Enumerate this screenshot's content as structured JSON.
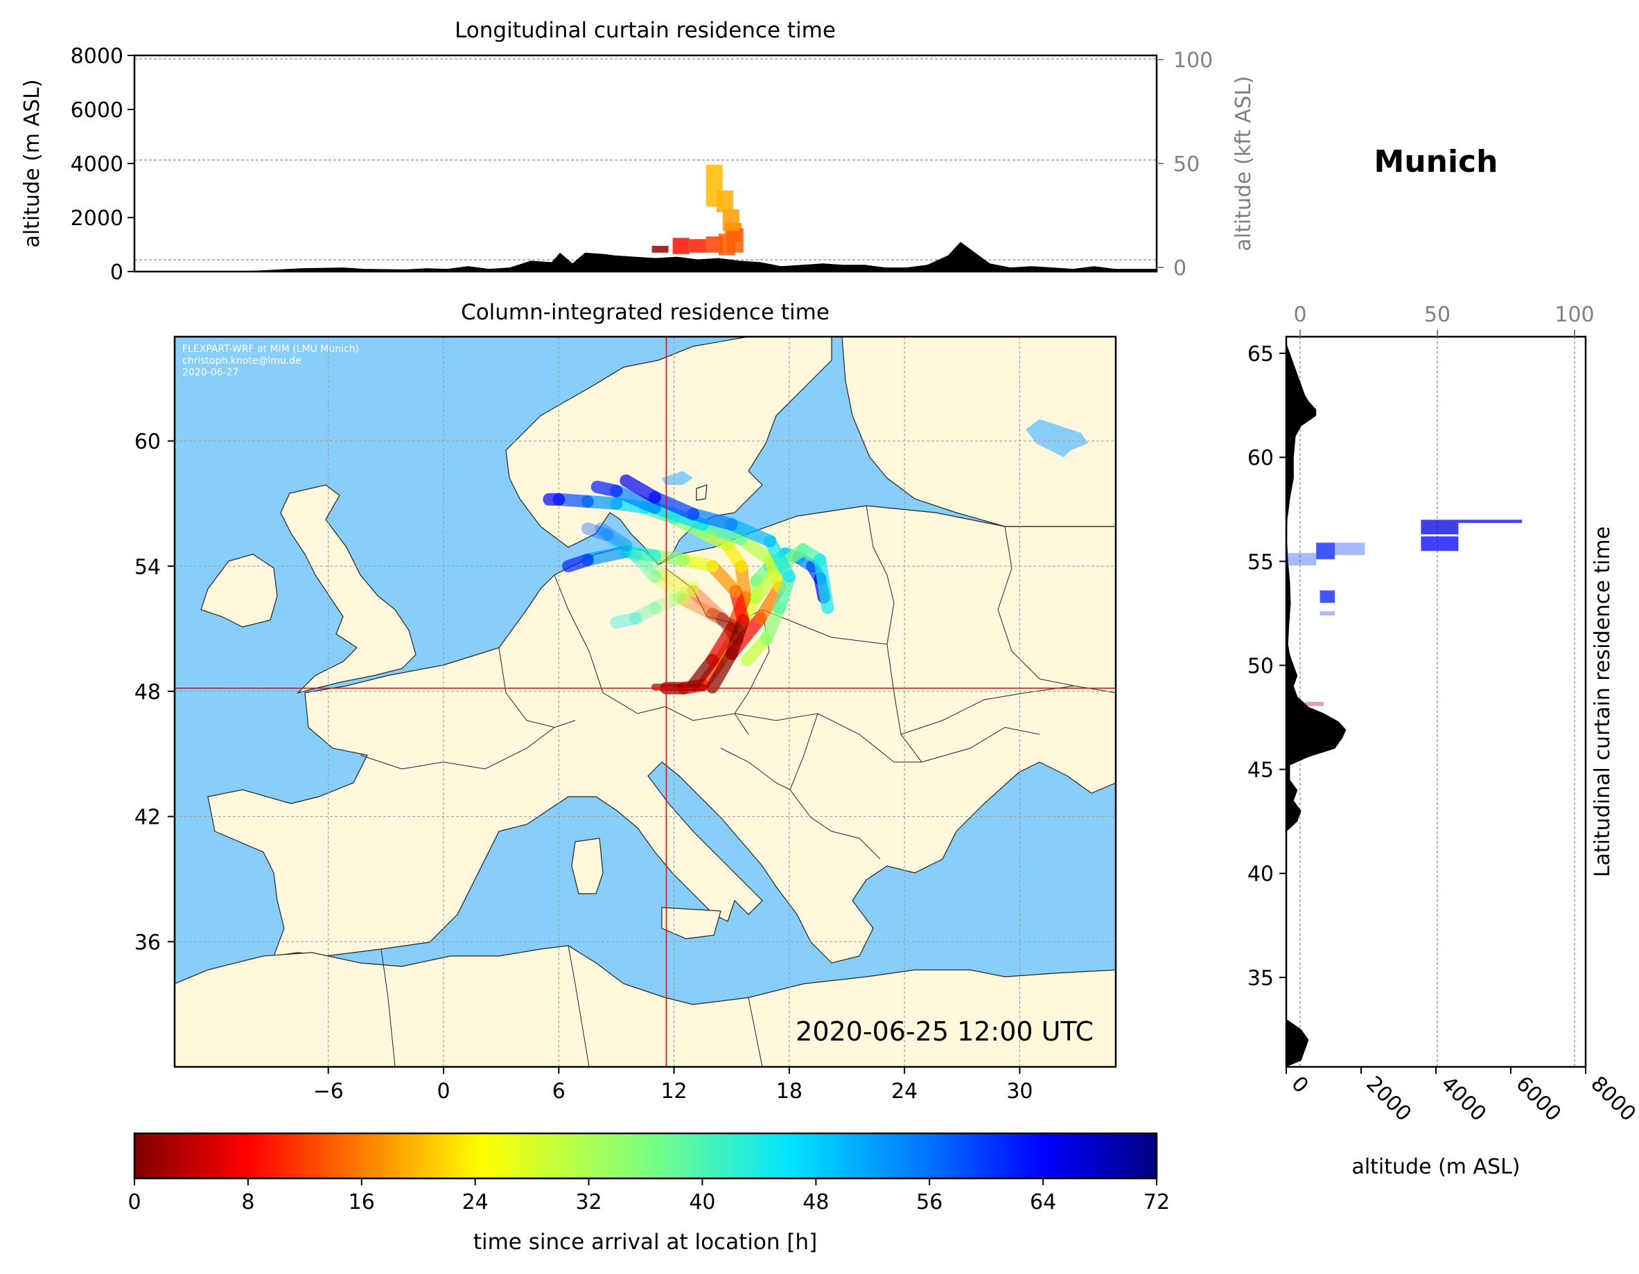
{
  "location": "Munich",
  "timestamp": "2020-06-25 12:00 UTC",
  "credit": [
    "FLEXPART-WRF at MIM (LMU Munich)",
    "christoph.knote@lmu.de",
    "2020-06-27"
  ],
  "colors": {
    "ocean": "#87CEFA",
    "land": "#FFF8DC",
    "marker": "#ff0000",
    "terrain": "#000000",
    "secondary_axis": "#808080"
  },
  "chart_data": [
    {
      "id": "longitudinal",
      "type": "area",
      "title": "Longitudinal curtain residence time",
      "ylabel": "altitude (m ASL)",
      "ylabel_right": "altitude (kft ASL)",
      "ylim": [
        0,
        8000
      ],
      "yticks": [
        "0",
        "2000",
        "4000",
        "6000",
        "8000"
      ],
      "y2ticks": [
        "0",
        "50",
        "100"
      ],
      "y2lim": [
        -2,
        102
      ],
      "xlim": [
        -14,
        35
      ],
      "terrain": {
        "x": [
          -14,
          -9,
          -6,
          -4,
          -3,
          -1,
          0,
          1,
          2,
          3,
          4,
          5,
          6,
          6.4,
          7,
          7.6,
          8.5,
          9,
          10,
          11,
          12,
          13,
          14,
          15,
          16,
          17,
          18,
          19,
          20,
          21,
          22,
          23,
          24,
          25,
          25.6,
          26.3,
          27,
          28,
          29,
          30,
          31,
          32,
          33,
          35
        ],
        "y": [
          0,
          0,
          120,
          150,
          100,
          80,
          120,
          100,
          200,
          100,
          150,
          400,
          350,
          700,
          300,
          700,
          650,
          600,
          550,
          500,
          550,
          450,
          500,
          400,
          350,
          200,
          250,
          300,
          250,
          250,
          150,
          150,
          250,
          600,
          1100,
          700,
          300,
          150,
          200,
          150,
          100,
          200,
          100,
          100
        ]
      },
      "residence_bars": [
        {
          "lon": 11.2,
          "alt_min": 700,
          "alt_max": 950,
          "hours": 2
        },
        {
          "lon": 12.2,
          "alt_min": 650,
          "alt_max": 1250,
          "hours": 9
        },
        {
          "lon": 13.0,
          "alt_min": 700,
          "alt_max": 1200,
          "hours": 10
        },
        {
          "lon": 13.8,
          "alt_min": 700,
          "alt_max": 1300,
          "hours": 12
        },
        {
          "lon": 14.4,
          "alt_min": 600,
          "alt_max": 1400,
          "hours": 14
        },
        {
          "lon": 14.7,
          "alt_min": 1100,
          "alt_max": 1800,
          "hours": 16
        },
        {
          "lon": 14.8,
          "alt_min": 700,
          "alt_max": 1600,
          "hours": 14
        },
        {
          "lon": 14.6,
          "alt_min": 1500,
          "alt_max": 2300,
          "hours": 18
        },
        {
          "lon": 14.3,
          "alt_min": 2200,
          "alt_max": 3000,
          "hours": 19
        },
        {
          "lon": 13.8,
          "alt_min": 2400,
          "alt_max": 3950,
          "hours": 20
        }
      ]
    },
    {
      "id": "map",
      "type": "scatter",
      "title": "Column-integrated residence time",
      "xlim": [
        -14,
        35
      ],
      "ylim": [
        30,
        65
      ],
      "xticks": [
        "−6",
        "0",
        "6",
        "12",
        "18",
        "24",
        "30"
      ],
      "yticks": [
        "36",
        "42",
        "48",
        "54",
        "60"
      ],
      "release_point": {
        "lon": 11.6,
        "lat": 48.15
      },
      "trajectories": [
        {
          "lon": [
            11.6,
            12.5,
            13.5,
            14.3,
            15.0,
            15.7,
            16.2,
            16.3,
            17.0,
            17.8,
            18.5,
            19.2,
            19.6,
            19.8
          ],
          "lat": [
            48.15,
            48.15,
            48.3,
            49.3,
            50.4,
            51.5,
            52.5,
            53.3,
            54.0,
            54.6,
            54.4,
            54.0,
            53.4,
            52.5
          ]
        },
        {
          "lon": [
            13.0,
            14.0,
            15.0,
            15.7,
            15.5,
            14.8,
            13.5,
            12.0,
            10.5,
            9.0,
            7.5,
            6.0,
            5.5
          ],
          "lat": [
            48.3,
            49.5,
            51.0,
            52.5,
            54.0,
            55.0,
            55.6,
            56.3,
            56.8,
            57.0,
            57.1,
            57.2,
            57.2
          ]
        },
        {
          "lon": [
            14.0,
            15.0,
            16.5,
            17.5,
            17.0,
            15.5,
            13.5,
            11.0,
            9.0,
            8.0
          ],
          "lat": [
            48.2,
            49.8,
            51.5,
            53.0,
            54.3,
            55.3,
            56.0,
            56.8,
            57.6,
            57.8
          ]
        },
        {
          "lon": [
            15.0,
            15.6,
            15.2,
            14.0,
            12.5,
            11.0,
            9.5,
            7.5,
            6.5
          ],
          "lat": [
            49.8,
            51.4,
            52.8,
            54.0,
            54.3,
            54.5,
            54.7,
            54.3,
            54.0
          ]
        },
        {
          "lon": [
            15.3,
            14.5,
            13.0,
            11.5,
            10.0,
            8.5,
            7.5
          ],
          "lat": [
            50.5,
            51.5,
            52.8,
            53.6,
            54.5,
            55.5,
            55.8
          ]
        },
        {
          "lon": [
            15.3,
            14.0,
            12.5,
            11.0,
            9.5,
            8.2
          ],
          "lat": [
            51.0,
            51.7,
            52.4,
            53.5,
            55.0,
            55.8
          ]
        },
        {
          "lon": [
            16.3,
            17.5,
            18.7,
            19.6,
            20.0
          ],
          "lat": [
            52.5,
            54.0,
            54.8,
            54.3,
            52.0
          ]
        },
        {
          "lon": [
            15.8,
            16.8,
            17.5,
            18.0,
            17.0,
            15.0,
            13.0,
            11.0,
            9.5
          ],
          "lat": [
            49.5,
            50.5,
            52.0,
            53.5,
            55.2,
            56.0,
            56.5,
            57.3,
            58.1
          ]
        },
        {
          "lon": [
            13.0,
            12.3,
            11.0,
            10.0,
            9.0
          ],
          "lat": [
            53.0,
            52.5,
            52.0,
            51.5,
            51.3
          ]
        },
        {
          "lon": [
            13.5,
            12.3,
            11.0
          ],
          "lat": [
            48.2,
            48.2,
            48.2
          ]
        }
      ],
      "trajectory_hours": [
        0,
        6,
        12,
        18,
        24,
        30,
        36,
        42,
        48,
        54,
        60,
        66,
        72
      ]
    },
    {
      "id": "latitudinal",
      "type": "area",
      "title": "Latitudinal curtain residence time",
      "xlabel": "altitude (m ASL)",
      "xlim": [
        0,
        8000
      ],
      "xticks": [
        "0",
        "2000",
        "4000",
        "6000",
        "8000"
      ],
      "x2ticks": [
        "0",
        "50",
        "100"
      ],
      "x2lim": [
        -2,
        102
      ],
      "ylim": [
        30.7,
        65.8
      ],
      "yticks": [
        "35",
        "40",
        "45",
        "50",
        "55",
        "60",
        "65"
      ],
      "terrain": {
        "lat": [
          30.7,
          31.0,
          31.5,
          32.0,
          32.5,
          33,
          34,
          35,
          36,
          37,
          38,
          39,
          40,
          41,
          42,
          42.5,
          43,
          43.5,
          44,
          44.5,
          45.2,
          45.6,
          46,
          46.5,
          46.9,
          47.3,
          47.7,
          48,
          48.5,
          49,
          49.5,
          50,
          50.5,
          51,
          52,
          53,
          54,
          55,
          56,
          57,
          58,
          59,
          60,
          61,
          61.5,
          62,
          62.3,
          62.7,
          63,
          63.5,
          64,
          64.5,
          65,
          65.5,
          65.8
        ],
        "alt": [
          0,
          400,
          500,
          600,
          400,
          0,
          0,
          0,
          0,
          0,
          0,
          0,
          0,
          0,
          0,
          300,
          400,
          200,
          300,
          100,
          100,
          600,
          1300,
          1500,
          1600,
          1400,
          1000,
          600,
          300,
          200,
          300,
          200,
          100,
          50,
          80,
          120,
          100,
          50,
          20,
          30,
          100,
          200,
          200,
          250,
          400,
          800,
          800,
          600,
          500,
          400,
          300,
          200,
          100,
          0,
          0
        ]
      },
      "residence_bars": [
        {
          "lat_min": 56.3,
          "lat_max": 57.0,
          "alt_min": 3600,
          "alt_max": 4600,
          "hours": 66
        },
        {
          "lat_min": 56.85,
          "lat_max": 57.0,
          "alt_min": 4600,
          "alt_max": 6300,
          "hours": 64
        },
        {
          "lat_min": 55.5,
          "lat_max": 56.2,
          "alt_min": 3600,
          "alt_max": 4600,
          "hours": 64
        },
        {
          "lat_min": 55.1,
          "lat_max": 55.9,
          "alt_min": 800,
          "alt_max": 1300,
          "hours": 62
        },
        {
          "lat_min": 55.3,
          "lat_max": 55.9,
          "alt_min": 1300,
          "alt_max": 2100,
          "hours": 60
        },
        {
          "lat_min": 54.8,
          "lat_max": 55.4,
          "alt_min": 0,
          "alt_max": 800,
          "hours": 60
        },
        {
          "lat_min": 53.0,
          "lat_max": 53.6,
          "alt_min": 900,
          "alt_max": 1300,
          "hours": 62
        },
        {
          "lat_min": 52.4,
          "lat_max": 52.6,
          "alt_min": 900,
          "alt_max": 1300,
          "hours": 60
        },
        {
          "lat_min": 48.05,
          "lat_max": 48.25,
          "alt_min": 500,
          "alt_max": 1000,
          "hours": 2
        }
      ]
    },
    {
      "id": "colorbar",
      "type": "heatmap",
      "label": "time since arrival at location [h]",
      "range": [
        0,
        72
      ],
      "ticks": [
        "0",
        "8",
        "16",
        "24",
        "32",
        "40",
        "48",
        "56",
        "64",
        "72"
      ]
    }
  ]
}
